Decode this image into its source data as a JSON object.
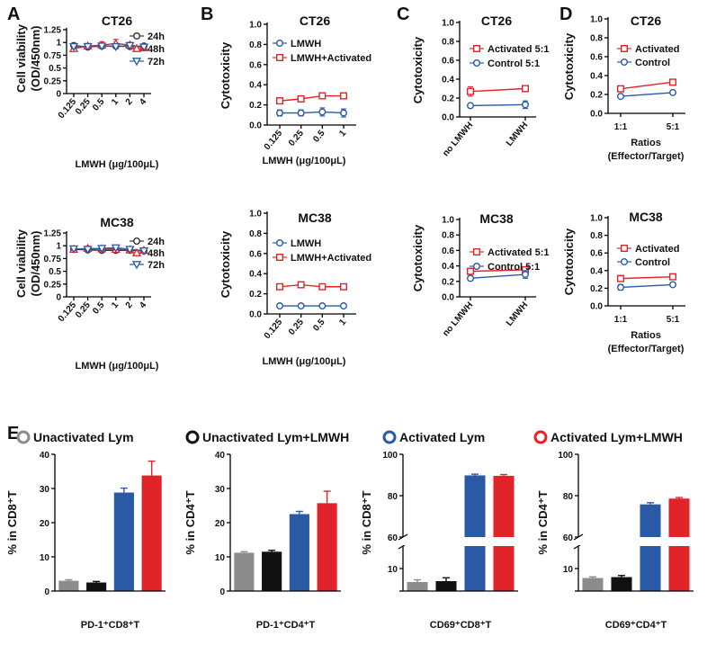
{
  "figure": {
    "panel_letters": [
      "A",
      "B",
      "C",
      "D",
      "E"
    ],
    "colors": {
      "c24": "#333333",
      "c48": "#e0242a",
      "c72": "#2a5aa6",
      "blue": "#2a5aa6",
      "red": "#e0242a",
      "gray": "#8c8c8c",
      "black": "#111111"
    }
  },
  "chart_data": [
    {
      "id": "A1",
      "panel": "A",
      "type": "line",
      "title": "CT26",
      "ylabel": [
        "Cell viability",
        "(OD/450nm)"
      ],
      "xlabel": "LMWH (μg/100μL)",
      "categories": [
        "0.125",
        "0.25",
        "0.5",
        "1",
        "2",
        "4"
      ],
      "ylim": [
        0,
        1.25
      ],
      "yticks": [
        "0",
        "0.25",
        "0.5",
        "0.75",
        "1",
        "1.25"
      ],
      "legend_position": "top-right",
      "series": [
        {
          "name": "24h",
          "marker": "circle",
          "color": "#333333",
          "values": [
            0.94,
            0.91,
            0.93,
            0.93,
            0.92,
            0.93
          ],
          "errors": [
            0.04,
            0.03,
            0.03,
            0.04,
            0.03,
            0.03
          ]
        },
        {
          "name": "48h",
          "marker": "triangle-up",
          "color": "#e0242a",
          "values": [
            0.88,
            0.93,
            0.95,
            0.98,
            0.95,
            0.9
          ],
          "errors": [
            0.05,
            0.05,
            0.06,
            0.08,
            0.05,
            0.06
          ]
        },
        {
          "name": "72h",
          "marker": "triangle-down",
          "color": "#2a5aa6",
          "values": [
            0.92,
            0.92,
            0.93,
            0.92,
            0.94,
            0.91
          ],
          "errors": [
            0.04,
            0.04,
            0.05,
            0.04,
            0.06,
            0.05
          ]
        }
      ]
    },
    {
      "id": "A2",
      "panel": "A",
      "type": "line",
      "title": "MC38",
      "ylabel": [
        "Cell viability",
        "(OD/450nm)"
      ],
      "xlabel": "LMWH (μg/100μL)",
      "categories": [
        "0.125",
        "0.25",
        "0.5",
        "1",
        "2",
        "4"
      ],
      "ylim": [
        0,
        1.25
      ],
      "yticks": [
        "0",
        "0.25",
        "0.5",
        "0.75",
        "1",
        "1.25"
      ],
      "legend_position": "top-right",
      "series": [
        {
          "name": "24h",
          "marker": "circle",
          "color": "#333333",
          "values": [
            0.93,
            0.92,
            0.91,
            0.91,
            0.91,
            0.9
          ],
          "errors": [
            0.03,
            0.03,
            0.03,
            0.03,
            0.03,
            0.03
          ]
        },
        {
          "name": "48h",
          "marker": "triangle-up",
          "color": "#e0242a",
          "values": [
            0.93,
            0.95,
            0.94,
            0.93,
            0.92,
            0.91
          ],
          "errors": [
            0.04,
            0.04,
            0.04,
            0.04,
            0.03,
            0.03
          ]
        },
        {
          "name": "72h",
          "marker": "triangle-down",
          "color": "#2a5aa6",
          "values": [
            0.94,
            0.93,
            0.95,
            0.96,
            0.93,
            0.9
          ],
          "errors": [
            0.03,
            0.03,
            0.04,
            0.04,
            0.04,
            0.03
          ]
        }
      ]
    },
    {
      "id": "B1",
      "panel": "B",
      "type": "line",
      "title": "CT26",
      "ylabel": [
        "Cytotoxicity"
      ],
      "xlabel": "LMWH (μg/100μL)",
      "categories": [
        "0.125",
        "0.25",
        "0.5",
        "1"
      ],
      "ylim": [
        0,
        1.0
      ],
      "yticks": [
        "0.0",
        "0.2",
        "0.4",
        "0.6",
        "0.8",
        "1.0"
      ],
      "legend_position": "top-left",
      "series": [
        {
          "name": "LMWH",
          "marker": "circle",
          "color": "#2a5aa6",
          "values": [
            0.12,
            0.12,
            0.13,
            0.12
          ],
          "errors": [
            0.03,
            0.03,
            0.04,
            0.04
          ]
        },
        {
          "name": "LMWH+Activated",
          "marker": "square",
          "color": "#e0242a",
          "values": [
            0.24,
            0.26,
            0.29,
            0.29
          ],
          "errors": [
            0.03,
            0.03,
            0.03,
            0.03
          ]
        }
      ]
    },
    {
      "id": "B2",
      "panel": "B",
      "type": "line",
      "title": "MC38",
      "ylabel": [
        "Cytotoxicity"
      ],
      "xlabel": "LMWH (μg/100μL)",
      "categories": [
        "0.125",
        "0.25",
        "0.5",
        "1"
      ],
      "ylim": [
        0,
        1.0
      ],
      "yticks": [
        "0.0",
        "0.2",
        "0.4",
        "0.6",
        "0.8",
        "1.0"
      ],
      "legend_position": "top-left",
      "series": [
        {
          "name": "LMWH",
          "marker": "circle",
          "color": "#2a5aa6",
          "values": [
            0.08,
            0.08,
            0.08,
            0.08
          ],
          "errors": [
            0.01,
            0.01,
            0.01,
            0.01
          ]
        },
        {
          "name": "LMWH+Activated",
          "marker": "square",
          "color": "#e0242a",
          "values": [
            0.27,
            0.29,
            0.27,
            0.27
          ],
          "errors": [
            0.02,
            0.02,
            0.02,
            0.01
          ]
        }
      ]
    },
    {
      "id": "C1",
      "panel": "C",
      "type": "line",
      "title": "CT26",
      "ylabel": [
        "Cytotoxicity"
      ],
      "xlabel": "",
      "categories": [
        "no LMWH",
        "LMWH"
      ],
      "ylim": [
        0,
        1.0
      ],
      "yticks": [
        "0.0",
        "0.2",
        "0.4",
        "0.6",
        "0.8",
        "1.0"
      ],
      "legend_position": "top",
      "series": [
        {
          "name": "Activated 5:1",
          "marker": "square",
          "color": "#e0242a",
          "values": [
            0.27,
            0.3
          ],
          "errors": [
            0.05,
            0.01
          ]
        },
        {
          "name": "Control 5:1",
          "marker": "circle",
          "color": "#2a5aa6",
          "values": [
            0.12,
            0.13
          ],
          "errors": [
            0.01,
            0.04
          ]
        }
      ]
    },
    {
      "id": "C2",
      "panel": "C",
      "type": "line",
      "title": "MC38",
      "ylabel": [
        "Cytotoxicity"
      ],
      "xlabel": "",
      "categories": [
        "no LMWH",
        "LMWH"
      ],
      "ylim": [
        0,
        1.0
      ],
      "yticks": [
        "0.0",
        "0.2",
        "0.4",
        "0.6",
        "0.8",
        "1.0"
      ],
      "legend_position": "top",
      "series": [
        {
          "name": "Activated 5:1",
          "marker": "square",
          "color": "#e0242a",
          "values": [
            0.33,
            0.35
          ],
          "errors": [
            0.04,
            0.03
          ]
        },
        {
          "name": "Control 5:1",
          "marker": "circle",
          "color": "#2a5aa6",
          "values": [
            0.24,
            0.29
          ],
          "errors": [
            0.03,
            0.05
          ]
        }
      ]
    },
    {
      "id": "D1",
      "panel": "D",
      "type": "line",
      "title": "CT26",
      "ylabel": [
        "Cytotoxicity"
      ],
      "xlabel": [
        "Ratios",
        "(Effector/Target)"
      ],
      "categories": [
        "1:1",
        "5:1"
      ],
      "ylim": [
        0,
        1.0
      ],
      "yticks": [
        "0.0",
        "0.2",
        "0.4",
        "0.6",
        "0.8",
        "1.0"
      ],
      "legend_position": "top",
      "series": [
        {
          "name": "Activated",
          "marker": "square",
          "color": "#e0242a",
          "values": [
            0.26,
            0.33
          ],
          "errors": [
            0.01,
            0.01
          ]
        },
        {
          "name": "Control",
          "marker": "circle",
          "color": "#2a5aa6",
          "values": [
            0.18,
            0.22
          ],
          "errors": [
            0.01,
            0.01
          ]
        }
      ]
    },
    {
      "id": "D2",
      "panel": "D",
      "type": "line",
      "title": "MC38",
      "ylabel": [
        "Cytotoxicity"
      ],
      "xlabel": [
        "Ratios",
        "(Effector/Target)"
      ],
      "categories": [
        "1:1",
        "5:1"
      ],
      "ylim": [
        0,
        1.0
      ],
      "yticks": [
        "0.0",
        "0.2",
        "0.4",
        "0.6",
        "0.8",
        "1.0"
      ],
      "legend_position": "top",
      "series": [
        {
          "name": "Activated",
          "marker": "square",
          "color": "#e0242a",
          "values": [
            0.31,
            0.33
          ],
          "errors": [
            0.02,
            0.02
          ]
        },
        {
          "name": "Control",
          "marker": "circle",
          "color": "#2a5aa6",
          "values": [
            0.21,
            0.24
          ],
          "errors": [
            0.03,
            0.02
          ]
        }
      ]
    },
    {
      "id": "E-legend",
      "panel": "E",
      "type": "legend",
      "entries": [
        {
          "name": "Unactivated Lym",
          "color": "#8c8c8c"
        },
        {
          "name": "Unactivated Lym+LMWH",
          "color": "#111111"
        },
        {
          "name": "Activated Lym",
          "color": "#2a5aa6"
        },
        {
          "name": "Activated Lym+LMWH",
          "color": "#e0242a"
        }
      ]
    },
    {
      "id": "E1",
      "panel": "E",
      "type": "bar",
      "ylabel": "% in CD8⁺T",
      "xlabel": "PD-1⁺CD8⁺T",
      "groups": [
        "Unactivated Lym",
        "Unactivated Lym+LMWH",
        "Activated Lym",
        "Activated Lym+LMWH"
      ],
      "values": [
        3.0,
        2.5,
        28.8,
        33.8
      ],
      "errors": [
        0.3,
        0.3,
        1.3,
        4.2
      ],
      "ylim": [
        0,
        40
      ],
      "yticks": [
        "0",
        "10",
        "20",
        "30",
        "40"
      ]
    },
    {
      "id": "E2",
      "panel": "E",
      "type": "bar",
      "ylabel": "% in CD4⁺T",
      "xlabel": "PD-1⁺CD4⁺T",
      "groups": [
        "Unactivated Lym",
        "Unactivated Lym+LMWH",
        "Activated Lym",
        "Activated Lym+LMWH"
      ],
      "values": [
        11.2,
        11.5,
        22.5,
        25.7
      ],
      "errors": [
        0.3,
        0.4,
        0.8,
        3.5
      ],
      "ylim": [
        0,
        40
      ],
      "yticks": [
        "0",
        "10",
        "20",
        "30",
        "40"
      ]
    },
    {
      "id": "E3",
      "panel": "E",
      "type": "bar",
      "ylabel": "% in CD8⁺T",
      "xlabel": "CD69⁺CD8⁺T",
      "groups": [
        "Unactivated Lym",
        "Unactivated Lym+LMWH",
        "Activated Lym",
        "Activated Lym+LMWH"
      ],
      "values": [
        4.0,
        4.4,
        89.8,
        89.6
      ],
      "errors": [
        1.0,
        1.5,
        0.6,
        0.6
      ],
      "axis_break": true,
      "lower_range": [
        0,
        20
      ],
      "upper_range": [
        60,
        100
      ],
      "lower_ticks": [
        "10"
      ],
      "upper_ticks": [
        "60",
        "80",
        "100"
      ]
    },
    {
      "id": "E4",
      "panel": "E",
      "type": "bar",
      "ylabel": "% in CD4⁺T",
      "xlabel": "CD69⁺CD4⁺T",
      "groups": [
        "Unactivated Lym",
        "Unactivated Lym+LMWH",
        "Activated Lym",
        "Activated Lym+LMWH"
      ],
      "values": [
        5.8,
        6.2,
        75.8,
        78.6
      ],
      "errors": [
        0.5,
        0.7,
        0.8,
        0.5
      ],
      "axis_break": true,
      "lower_range": [
        0,
        20
      ],
      "upper_range": [
        60,
        100
      ],
      "lower_ticks": [
        "10"
      ],
      "upper_ticks": [
        "60",
        "80",
        "100"
      ]
    }
  ]
}
